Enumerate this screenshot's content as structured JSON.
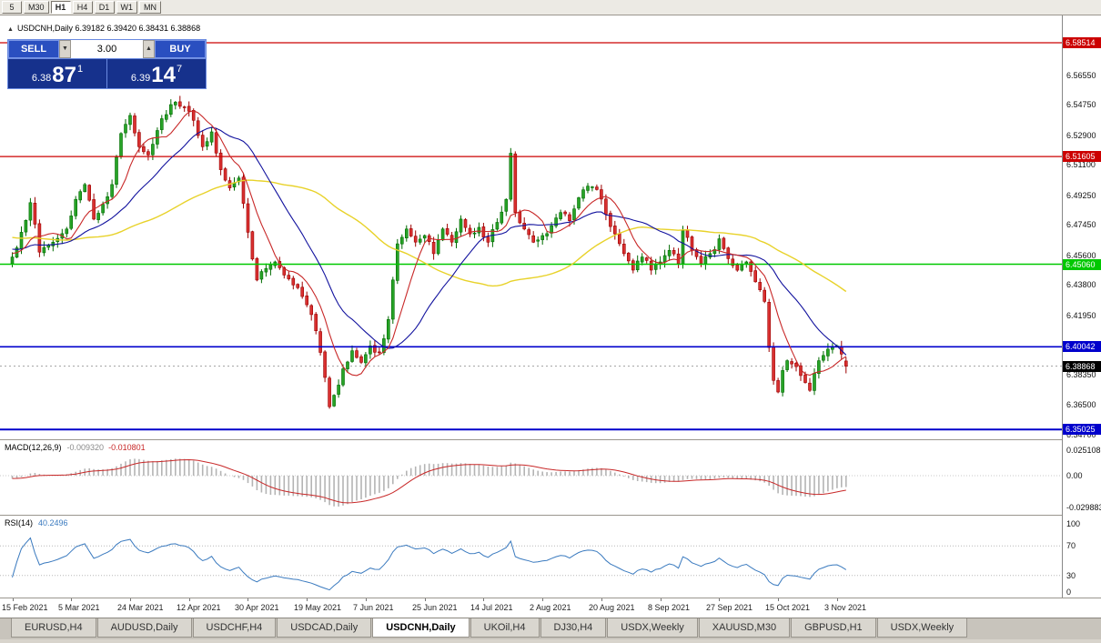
{
  "toolbar": {
    "timeframes": [
      "5",
      "M30",
      "H1",
      "H4",
      "D1",
      "W1",
      "MN"
    ],
    "active": "H1"
  },
  "chart_header": {
    "collapse_glyph": "▲",
    "symbol_ohlc": "USDCNH,Daily 6.39182 6.39420 6.38431 6.38868"
  },
  "quote_panel": {
    "sell_label": "SELL",
    "buy_label": "BUY",
    "volume": "3.00",
    "volume_down_glyph": "▼",
    "volume_up_glyph": "▲",
    "bid": {
      "prefix": "6.38",
      "big": "87",
      "sup": "1"
    },
    "ask": {
      "prefix": "6.39",
      "big": "14",
      "sup": "7"
    }
  },
  "y_axis": {
    "ticks": [
      "6.56550",
      "6.54750",
      "6.52900",
      "6.51100",
      "6.49250",
      "6.47450",
      "6.45600",
      "6.43800",
      "6.41950",
      "6.40150",
      "6.38350",
      "6.36500",
      "6.34700"
    ]
  },
  "levels": [
    {
      "label": "6.58514",
      "price": 6.58514,
      "color": "#cc0000",
      "width": 1.2
    },
    {
      "label": "6.51605",
      "price": 6.51605,
      "color": "#cc0000",
      "width": 1.2
    },
    {
      "label": "6.45060",
      "price": 6.4506,
      "color": "#00c800",
      "width": 1.6
    },
    {
      "label": "6.40042",
      "price": 6.40042,
      "color": "#0000cc",
      "width": 1.6
    },
    {
      "label": "6.35025",
      "price": 6.35025,
      "color": "#0000cc",
      "width": 2
    }
  ],
  "current_price": {
    "label": "6.38868",
    "price": 6.38868,
    "color": "#000000"
  },
  "macd_panel": {
    "label": "MACD(12,26,9)",
    "main_value": "-0.009320",
    "signal_value": "-0.010801",
    "axis_ticks": [
      "0.025108",
      "0.00",
      "-0.029883"
    ]
  },
  "rsi_panel": {
    "label": "RSI(14)",
    "value": "40.2496",
    "axis_ticks": [
      "100",
      "70",
      "30",
      "0"
    ],
    "overbought": 70,
    "oversold": 30
  },
  "x_axis": {
    "dates": [
      "15 Feb 2021",
      "5 Mar 2021",
      "24 Mar 2021",
      "12 Apr 2021",
      "30 Apr 2021",
      "19 May 2021",
      "7 Jun 2021",
      "25 Jun 2021",
      "14 Jul 2021",
      "2 Aug 2021",
      "20 Aug 2021",
      "8 Sep 2021",
      "27 Sep 2021",
      "15 Oct 2021",
      "3 Nov 2021"
    ]
  },
  "tabs": {
    "active_index": 4,
    "items": [
      "EURUSD,H4",
      "AUDUSD,Daily",
      "USDCHF,H4",
      "USDCAD,Daily",
      "USDCNH,Daily",
      "UKOil,H4",
      "DJ30,H4",
      "USDX,Weekly",
      "XAUUSD,M30",
      "GBPUSD,H1",
      "USDX,Weekly"
    ]
  },
  "chart_data": {
    "type": "candlestick",
    "title": "USDCNH,Daily",
    "symbol": "USDCNH",
    "timeframe": "Daily",
    "current_ohlc": {
      "open": 6.39182,
      "high": 6.3942,
      "low": 6.38431,
      "close": 6.38868
    },
    "y_axis_range": [
      6.3448,
      6.602
    ],
    "x_tick_labels": [
      "15 Feb 2021",
      "5 Mar 2021",
      "24 Mar 2021",
      "12 Apr 2021",
      "30 Apr 2021",
      "19 May 2021",
      "7 Jun 2021",
      "25 Jun 2021",
      "14 Jul 2021",
      "2 Aug 2021",
      "20 Aug 2021",
      "8 Sep 2021",
      "27 Sep 2021",
      "15 Oct 2021",
      "3 Nov 2021"
    ],
    "tick_every": 13,
    "candle_count": 185,
    "close_waypoints": [
      [
        0,
        6.455
      ],
      [
        2,
        6.47
      ],
      [
        4,
        6.488
      ],
      [
        6,
        6.458
      ],
      [
        9,
        6.464
      ],
      [
        12,
        6.472
      ],
      [
        14,
        6.49
      ],
      [
        16,
        6.499
      ],
      [
        18,
        6.478
      ],
      [
        20,
        6.487
      ],
      [
        22,
        6.499
      ],
      [
        24,
        6.53
      ],
      [
        26,
        6.541
      ],
      [
        28,
        6.522
      ],
      [
        30,
        6.517
      ],
      [
        33,
        6.539
      ],
      [
        36,
        6.549
      ],
      [
        38,
        6.546
      ],
      [
        40,
        6.538
      ],
      [
        42,
        6.522
      ],
      [
        44,
        6.531
      ],
      [
        46,
        6.508
      ],
      [
        48,
        6.497
      ],
      [
        50,
        6.503
      ],
      [
        52,
        6.47
      ],
      [
        54,
        6.441
      ],
      [
        56,
        6.448
      ],
      [
        58,
        6.452
      ],
      [
        60,
        6.444
      ],
      [
        62,
        6.438
      ],
      [
        64,
        6.431
      ],
      [
        66,
        6.42
      ],
      [
        68,
        6.397
      ],
      [
        70,
        6.364
      ],
      [
        71,
        6.371
      ],
      [
        73,
        6.387
      ],
      [
        75,
        6.398
      ],
      [
        77,
        6.391
      ],
      [
        79,
        6.401
      ],
      [
        81,
        6.397
      ],
      [
        83,
        6.417
      ],
      [
        85,
        6.463
      ],
      [
        87,
        6.472
      ],
      [
        89,
        6.464
      ],
      [
        91,
        6.468
      ],
      [
        93,
        6.457
      ],
      [
        95,
        6.472
      ],
      [
        97,
        6.464
      ],
      [
        99,
        6.478
      ],
      [
        101,
        6.469
      ],
      [
        103,
        6.473
      ],
      [
        105,
        6.464
      ],
      [
        107,
        6.476
      ],
      [
        109,
        6.49
      ],
      [
        110,
        6.518
      ],
      [
        111,
        6.482
      ],
      [
        113,
        6.472
      ],
      [
        115,
        6.464
      ],
      [
        117,
        6.468
      ],
      [
        119,
        6.474
      ],
      [
        121,
        6.482
      ],
      [
        123,
        6.477
      ],
      [
        125,
        6.491
      ],
      [
        127,
        6.498
      ],
      [
        129,
        6.496
      ],
      [
        131,
        6.481
      ],
      [
        133,
        6.469
      ],
      [
        135,
        6.457
      ],
      [
        137,
        6.447
      ],
      [
        139,
        6.455
      ],
      [
        141,
        6.447
      ],
      [
        143,
        6.452
      ],
      [
        145,
        6.459
      ],
      [
        147,
        6.451
      ],
      [
        148,
        6.471
      ],
      [
        150,
        6.459
      ],
      [
        152,
        6.451
      ],
      [
        154,
        6.457
      ],
      [
        156,
        6.466
      ],
      [
        158,
        6.454
      ],
      [
        160,
        6.447
      ],
      [
        162,
        6.452
      ],
      [
        164,
        6.44
      ],
      [
        166,
        6.428
      ],
      [
        167,
        6.4
      ],
      [
        168,
        6.38
      ],
      [
        169,
        6.373
      ],
      [
        170,
        6.386
      ],
      [
        171,
        6.392
      ],
      [
        172,
        6.39
      ],
      [
        174,
        6.383
      ],
      [
        176,
        6.374
      ],
      [
        178,
        6.392
      ],
      [
        180,
        6.399
      ],
      [
        182,
        6.401
      ],
      [
        183,
        6.396
      ],
      [
        184,
        6.38868
      ]
    ],
    "horizontal_levels": [
      6.58514,
      6.51605,
      6.4506,
      6.40042,
      6.35025
    ],
    "moving_averages": [
      {
        "period": 55,
        "color": "#e8d22a"
      },
      {
        "period": 21,
        "color": "#12129e"
      },
      {
        "period": 8,
        "color": "#c82828"
      }
    ],
    "indicators": [
      {
        "name": "MACD",
        "params": [
          12,
          26,
          9
        ],
        "main": -0.00932,
        "signal": -0.010801,
        "axis": [
          0.025108,
          0.0,
          -0.029883
        ]
      },
      {
        "name": "RSI",
        "params": [
          14
        ],
        "value": 40.2496,
        "levels": [
          70,
          30
        ]
      }
    ]
  }
}
